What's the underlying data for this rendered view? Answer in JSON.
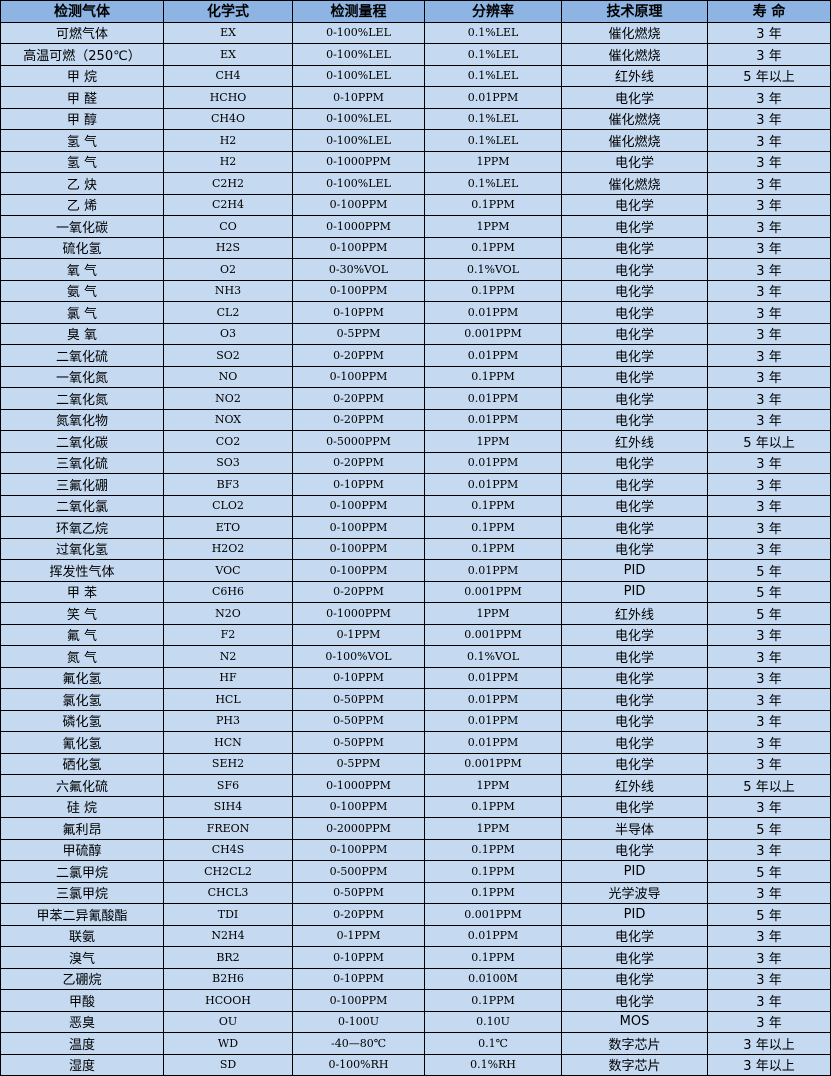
{
  "colors": {
    "header_bg": "#8DB4E2",
    "row_bg": "#C5D9F1",
    "border": "#000000"
  },
  "headers": [
    "检测气体",
    "化学式",
    "检测量程",
    "分辨率",
    "技术原理",
    "寿 命"
  ],
  "rows": [
    [
      "可燃气体",
      "EX",
      "0-100%LEL",
      "0.1%LEL",
      "催化燃烧",
      "3 年"
    ],
    [
      "高温可燃（250℃）",
      "EX",
      "0-100%LEL",
      "0.1%LEL",
      "催化燃烧",
      "3 年"
    ],
    [
      "甲 烷",
      "CH4",
      "0-100%LEL",
      "0.1%LEL",
      "红外线",
      "5 年以上"
    ],
    [
      "甲 醛",
      "HCHO",
      "0-10PPM",
      "0.01PPM",
      "电化学",
      "3 年"
    ],
    [
      "甲 醇",
      "CH4O",
      "0-100%LEL",
      "0.1%LEL",
      "催化燃烧",
      "3 年"
    ],
    [
      "氢 气",
      "H2",
      "0-100%LEL",
      "0.1%LEL",
      "催化燃烧",
      "3 年"
    ],
    [
      "氢 气",
      "H2",
      "0-1000PPM",
      "1PPM",
      "电化学",
      "3 年"
    ],
    [
      "乙 炔",
      "C2H2",
      "0-100%LEL",
      "0.1%LEL",
      "催化燃烧",
      "3 年"
    ],
    [
      "乙 烯",
      "C2H4",
      "0-100PPM",
      "0.1PPM",
      "电化学",
      "3 年"
    ],
    [
      "一氧化碳",
      "CO",
      "0-1000PPM",
      "1PPM",
      "电化学",
      "3 年"
    ],
    [
      "硫化氢",
      "H2S",
      "0-100PPM",
      "0.1PPM",
      "电化学",
      "3 年"
    ],
    [
      "氧 气",
      "O2",
      "0-30%VOL",
      "0.1%VOL",
      "电化学",
      "3 年"
    ],
    [
      "氨 气",
      "NH3",
      "0-100PPM",
      "0.1PPM",
      "电化学",
      "3 年"
    ],
    [
      "氯 气",
      "CL2",
      "0-10PPM",
      "0.01PPM",
      "电化学",
      "3 年"
    ],
    [
      "臭 氧",
      "O3",
      "0-5PPM",
      "0.001PPM",
      "电化学",
      "3 年"
    ],
    [
      "二氧化硫",
      "SO2",
      "0-20PPM",
      "0.01PPM",
      "电化学",
      "3 年"
    ],
    [
      "一氧化氮",
      "NO",
      "0-100PPM",
      "0.1PPM",
      "电化学",
      "3 年"
    ],
    [
      "二氧化氮",
      "NO2",
      "0-20PPM",
      "0.01PPM",
      "电化学",
      "3 年"
    ],
    [
      "氮氧化物",
      "NOX",
      "0-20PPM",
      "0.01PPM",
      "电化学",
      "3 年"
    ],
    [
      "二氧化碳",
      "CO2",
      "0-5000PPM",
      "1PPM",
      "红外线",
      "5 年以上"
    ],
    [
      "三氧化硫",
      "SO3",
      "0-20PPM",
      "0.01PPM",
      "电化学",
      "3 年"
    ],
    [
      "三氟化硼",
      "BF3",
      "0-10PPM",
      "0.01PPM",
      "电化学",
      "3 年"
    ],
    [
      "二氧化氯",
      "CLO2",
      "0-100PPM",
      "0.1PPM",
      "电化学",
      "3 年"
    ],
    [
      "环氧乙烷",
      "ETO",
      "0-100PPM",
      "0.1PPM",
      "电化学",
      "3 年"
    ],
    [
      "过氧化氢",
      "H2O2",
      "0-100PPM",
      "0.1PPM",
      "电化学",
      "3 年"
    ],
    [
      "挥发性气体",
      "VOC",
      "0-100PPM",
      "0.01PPM",
      "PID",
      "5 年"
    ],
    [
      "甲 苯",
      "C6H6",
      "0-20PPM",
      "0.001PPM",
      "PID",
      "5 年"
    ],
    [
      "笑 气",
      "N2O",
      "0-1000PPM",
      "1PPM",
      "红外线",
      "5 年"
    ],
    [
      "氟 气",
      "F2",
      "0-1PPM",
      "0.001PPM",
      "电化学",
      "3 年"
    ],
    [
      "氮 气",
      "N2",
      "0-100%VOL",
      "0.1%VOL",
      "电化学",
      "3 年"
    ],
    [
      "氟化氢",
      "HF",
      "0-10PPM",
      "0.01PPM",
      "电化学",
      "3 年"
    ],
    [
      "氯化氢",
      "HCL",
      "0-50PPM",
      "0.01PPM",
      "电化学",
      "3 年"
    ],
    [
      "磷化氢",
      "PH3",
      "0-50PPM",
      "0.01PPM",
      "电化学",
      "3 年"
    ],
    [
      "氰化氢",
      "HCN",
      "0-50PPM",
      "0.01PPM",
      "电化学",
      "3 年"
    ],
    [
      "硒化氢",
      "SEH2",
      "0-5PPM",
      "0.001PPM",
      "电化学",
      "3 年"
    ],
    [
      "六氟化硫",
      "SF6",
      "0-1000PPM",
      "1PPM",
      "红外线",
      "5 年以上"
    ],
    [
      "硅 烷",
      "SIH4",
      "0-100PPM",
      "0.1PPM",
      "电化学",
      "3 年"
    ],
    [
      "氟利昂",
      "FREON",
      "0-2000PPM",
      "1PPM",
      "半导体",
      "5 年"
    ],
    [
      "甲硫醇",
      "CH4S",
      "0-100PPM",
      "0.1PPM",
      "电化学",
      "3 年"
    ],
    [
      "二氯甲烷",
      "CH2CL2",
      "0-500PPM",
      "0.1PPM",
      "PID",
      "5 年"
    ],
    [
      "三氯甲烷",
      "CHCL3",
      "0-50PPM",
      "0.1PPM",
      "光学波导",
      "3 年"
    ],
    [
      "甲苯二异氰酸酯",
      "TDI",
      "0-20PPM",
      "0.001PPM",
      "PID",
      "5 年"
    ],
    [
      "联氨",
      "N2H4",
      "0-1PPM",
      "0.01PPM",
      "电化学",
      "3 年"
    ],
    [
      "溴气",
      "BR2",
      "0-10PPM",
      "0.1PPM",
      "电化学",
      "3 年"
    ],
    [
      "乙硼烷",
      "B2H6",
      "0-10PPM",
      "0.0100M",
      "电化学",
      "3 年"
    ],
    [
      "甲酸",
      "HCOOH",
      "0-100PPM",
      "0.1PPM",
      "电化学",
      "3 年"
    ],
    [
      "恶臭",
      "OU",
      "0-100U",
      "0.10U",
      "MOS",
      "3 年"
    ],
    [
      "温度",
      "WD",
      "-40—80℃",
      "0.1℃",
      "数字芯片",
      "3 年以上"
    ],
    [
      "湿度",
      "SD",
      "0-100%RH",
      "0.1%RH",
      "数字芯片",
      "3 年以上"
    ]
  ]
}
